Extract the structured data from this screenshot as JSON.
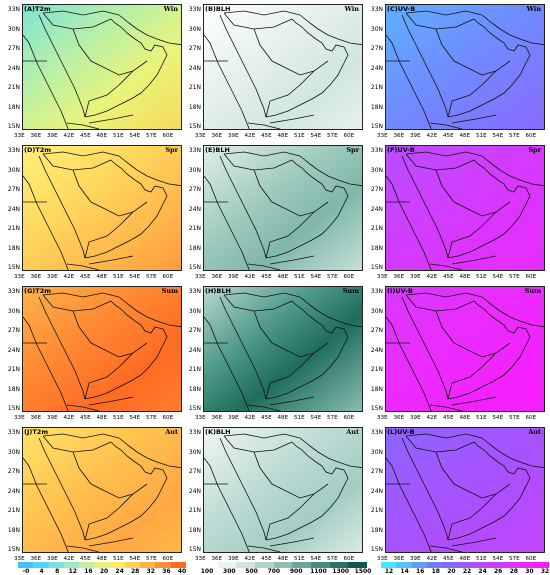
{
  "panels": [
    {
      "label": "(A)T2m",
      "season": "Win",
      "field": "t2m_win"
    },
    {
      "label": "(B)BLH",
      "season": "Win",
      "field": "blh_win"
    },
    {
      "label": "(C)UV-B",
      "season": "Win",
      "field": "uvb_win"
    },
    {
      "label": "(D)T2m",
      "season": "Spr",
      "field": "t2m_spr"
    },
    {
      "label": "(E)BLH",
      "season": "Spr",
      "field": "blh_spr"
    },
    {
      "label": "(F)UV-B",
      "season": "Spr",
      "field": "uvb_spr"
    },
    {
      "label": "(G)T2m",
      "season": "Sum",
      "field": "t2m_sum"
    },
    {
      "label": "(H)BLH",
      "season": "Sum",
      "field": "blh_sum"
    },
    {
      "label": "(I)UV-B",
      "season": "Sum",
      "field": "uvb_sum"
    },
    {
      "label": "(J)T2m",
      "season": "Aut",
      "field": "t2m_aut"
    },
    {
      "label": "(K)BLH",
      "season": "Aut",
      "field": "blh_aut"
    },
    {
      "label": "(L)UV-B",
      "season": "Aut",
      "field": "uvb_aut"
    }
  ],
  "lat_ticks": [
    "33N",
    "30N",
    "27N",
    "24N",
    "21N",
    "18N",
    "15N"
  ],
  "lon_ticks": [
    "33E",
    "36E",
    "39E",
    "42E",
    "45E",
    "48E",
    "51E",
    "54E",
    "57E",
    "60E"
  ],
  "colorbars": [
    {
      "name": "T2m",
      "ticks": [
        "-0",
        "4",
        "8",
        "12",
        "16",
        "20",
        "24",
        "28",
        "32",
        "36",
        "40"
      ],
      "colors": [
        "#3fc1ff",
        "#58d2f2",
        "#7be0d9",
        "#9ee9c0",
        "#c4f0a0",
        "#e8f37c",
        "#ffe96a",
        "#ffd058",
        "#ffb145",
        "#ff8f33",
        "#ff6a22"
      ]
    },
    {
      "name": "BLH",
      "ticks": [
        "100",
        "300",
        "500",
        "700",
        "900",
        "1100",
        "1300",
        "1500"
      ],
      "colors": [
        "#ffffff",
        "#eaf3f1",
        "#d0e5e0",
        "#b0d3cb",
        "#8dbfb4",
        "#69a89b",
        "#468f80",
        "#277565",
        "#0f5a4b"
      ]
    },
    {
      "name": "UV-B",
      "ticks": [
        "12",
        "14",
        "16",
        "18",
        "20",
        "22",
        "24",
        "26",
        "28",
        "30",
        "32"
      ],
      "colors": [
        "#43e6ff",
        "#4fc2ff",
        "#5c9dff",
        "#6d7fff",
        "#8468ff",
        "#9d58ff",
        "#b54cff",
        "#cb3eff",
        "#de33ff",
        "#ee28ff",
        "#fa1aff"
      ]
    }
  ]
}
